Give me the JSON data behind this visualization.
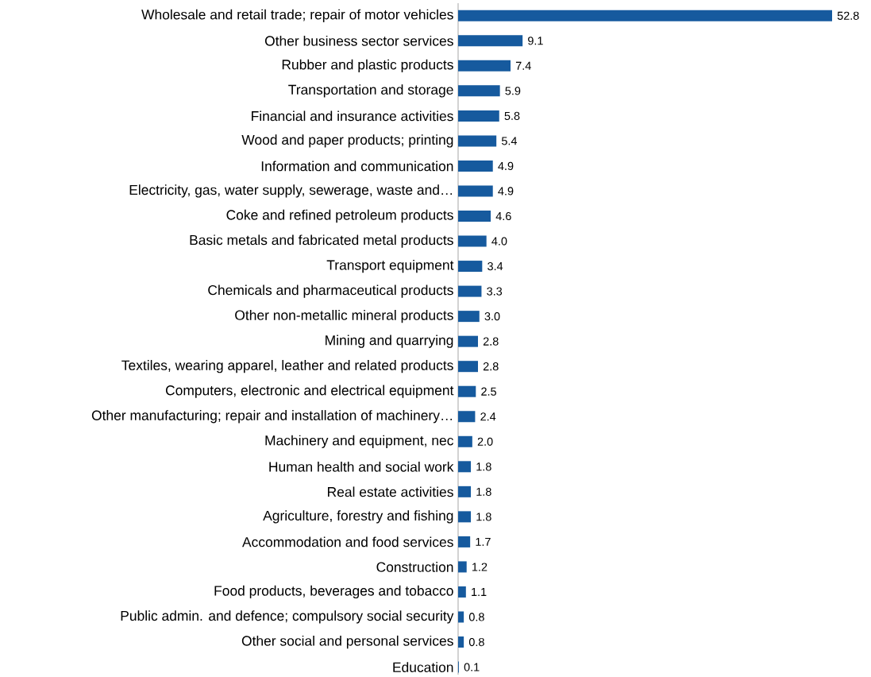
{
  "chart_data": {
    "type": "bar",
    "orientation": "horizontal",
    "color": "#165a9e",
    "categories": [
      "Wholesale and retail trade; repair of motor vehicles",
      "Other business sector services",
      "Rubber and plastic products",
      "Transportation and storage",
      "Financial and insurance activities",
      "Wood and paper products; printing",
      "Information and communication",
      "Electricity, gas, water supply, sewerage, waste and…",
      "Coke and refined petroleum products",
      "Basic metals and fabricated metal products",
      "Transport equipment",
      "Chemicals and pharmaceutical products",
      "Other non-metallic mineral products",
      "Mining and quarrying",
      "Textiles, wearing apparel, leather and related products",
      "Computers, electronic and electrical equipment",
      "Other manufacturing; repair and installation of machinery…",
      "Machinery and equipment, nec",
      "Human health and social work",
      "Real estate activities",
      "Agriculture, forestry and fishing",
      "Accommodation and food services",
      "Construction",
      "Food products, beverages and tobacco",
      "Public admin. and defence; compulsory social security",
      "Other social and personal services",
      "Education"
    ],
    "values": [
      52.8,
      9.1,
      7.4,
      5.9,
      5.8,
      5.4,
      4.9,
      4.9,
      4.6,
      4.0,
      3.4,
      3.3,
      3.0,
      2.8,
      2.8,
      2.5,
      2.4,
      2.0,
      1.8,
      1.8,
      1.8,
      1.7,
      1.2,
      1.1,
      0.8,
      0.8,
      0.1
    ],
    "value_labels": [
      "52.8",
      "9.1",
      "7.4",
      "5.9",
      "5.8",
      "5.4",
      "4.9",
      "4.9",
      "4.6",
      "4.0",
      "3.4",
      "3.3",
      "3.0",
      "2.8",
      "2.8",
      "2.5",
      "2.4",
      "2.0",
      "1.8",
      "1.8",
      "1.8",
      "1.7",
      "1.2",
      "1.1",
      "0.8",
      "0.8",
      "0.1"
    ]
  }
}
